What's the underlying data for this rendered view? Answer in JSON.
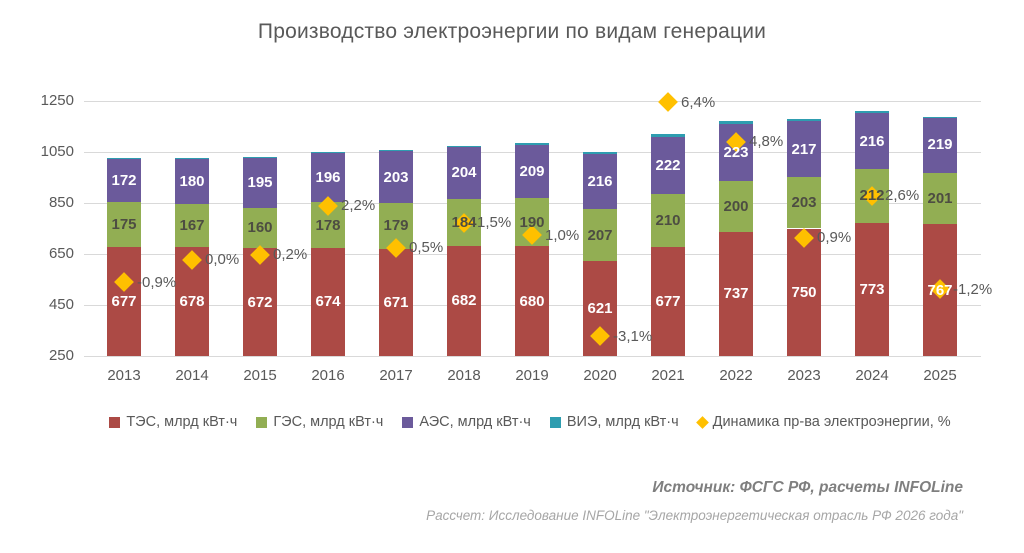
{
  "title": "Производство электроэнергии по видам генерации",
  "chart_data": {
    "type": "bar",
    "stacked": true,
    "grid": true,
    "legend_position": "bottom",
    "categories": [
      "2013",
      "2014",
      "2015",
      "2016",
      "2017",
      "2018",
      "2019",
      "2020",
      "2021",
      "2022",
      "2023",
      "2024",
      "2025"
    ],
    "ylim": [
      250,
      1250
    ],
    "yticks": [
      250,
      450,
      650,
      850,
      1050,
      1250
    ],
    "series": [
      {
        "name": "ТЭС, млрд кВт·ч",
        "color": "#AC4A45",
        "label_color": "#ffffff",
        "values": [
          677,
          678,
          672,
          674,
          671,
          682,
          680,
          621,
          677,
          737,
          750,
          773,
          767
        ]
      },
      {
        "name": "ГЭС, млрд кВт·ч",
        "color": "#92AE53",
        "label_color": "#4d4d42",
        "values": [
          175,
          167,
          160,
          178,
          179,
          184,
          190,
          207,
          210,
          200,
          203,
          212,
          201
        ]
      },
      {
        "name": "АЭС, млрд кВт·ч",
        "color": "#6B5A9B",
        "label_color": "#ffffff",
        "values": [
          172,
          180,
          195,
          196,
          203,
          204,
          209,
          216,
          222,
          223,
          217,
          216,
          219
        ]
      },
      {
        "name": "ВИЭ, млрд кВт·ч",
        "color": "#2E9DB0",
        "label_color": null,
        "values": [
          1,
          2,
          3,
          3,
          3,
          4,
          5,
          5,
          10,
          12,
          9,
          11,
          2
        ],
        "values_unlabeled_estimates": true
      }
    ],
    "marker_series": {
      "name": "Динамика пр-ва электроэнергии, %",
      "color": "#FFC000",
      "marker": "diamond",
      "values": [
        -0.9,
        0.0,
        0.2,
        2.2,
        0.5,
        1.5,
        1.0,
        -3.1,
        6.4,
        4.8,
        0.9,
        2.6,
        -1.2
      ],
      "labels": [
        "-0,9%",
        "0,0%",
        "0,2%",
        "2,2%",
        "0,5%",
        "1,5%",
        "1,0%",
        "-3,1%",
        "6,4%",
        "4,8%",
        "0,9%",
        "2,6%",
        "-1,2%"
      ],
      "secondary_axis": {
        "visible": false,
        "percent_zero_at_primary": 627,
        "primary_units_per_percent": 96.5
      }
    }
  },
  "footer": {
    "source": "Источник: ФСГС РФ, расчеты INFOLine",
    "note": "Рассчет: Исследование INFOLine \"Электроэнергетическая отрасль РФ 2026 года\""
  }
}
